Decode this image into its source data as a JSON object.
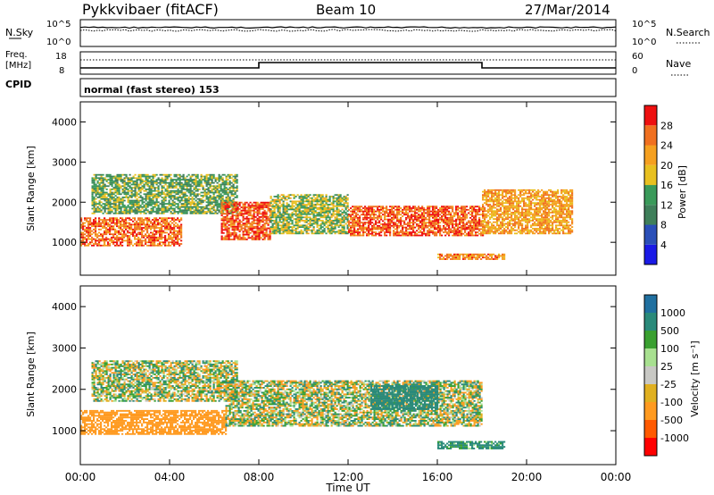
{
  "header": {
    "station": "Pykkvibaer (fitACF)",
    "beam": "Beam 10",
    "date": "27/Mar/2014"
  },
  "top_panels": {
    "nsky_label": "N.Sky",
    "nsearch_label": "N.Search",
    "nsky_ticks": [
      "10^5",
      "10^0"
    ],
    "nsearch_ticks": [
      "10^5",
      "10^0"
    ],
    "freq_label_1": "Freq.",
    "freq_label_2": "[MHz]",
    "freq_ticks": [
      "18",
      "8"
    ],
    "nave_label": "Nave",
    "nave_ticks": [
      "60",
      "0"
    ],
    "cpid_label": "CPID",
    "cpid_text": "normal (fast stereo) 153"
  },
  "colors": {
    "power_scale": [
      "#1a1ae6",
      "#2a4fb8",
      "#3f7f5a",
      "#3a9a5a",
      "#e8c020",
      "#f5a020",
      "#f07020",
      "#ee1010"
    ],
    "velocity_scale": [
      "#ff0000",
      "#ff5a00",
      "#ff9a20",
      "#e0b020",
      "#c8c8c4",
      "#a8e090",
      "#3aa030",
      "#2a8a7a",
      "#2070a0",
      "#2030c0"
    ]
  },
  "chart_data": [
    {
      "type": "heatmap",
      "panel": "power",
      "ylabel": "Slant Range [km]",
      "ylim": [
        180,
        4500
      ],
      "yticks": [
        "1000",
        "2000",
        "3000",
        "4000"
      ],
      "xlim": [
        0,
        24
      ],
      "colorbar": {
        "label": "Power [dB]",
        "ticks": [
          "4",
          "8",
          "12",
          "16",
          "20",
          "24",
          "28"
        ],
        "range": [
          0,
          32
        ]
      },
      "regions": [
        {
          "t": [
            0,
            4.5
          ],
          "r": [
            900,
            1600
          ],
          "level": 26
        },
        {
          "t": [
            0.5,
            7
          ],
          "r": [
            1700,
            2700
          ],
          "level": 14
        },
        {
          "t": [
            6.3,
            8.5
          ],
          "r": [
            1050,
            2000
          ],
          "level": 27
        },
        {
          "t": [
            8.5,
            12
          ],
          "r": [
            1200,
            2200
          ],
          "level": 16
        },
        {
          "t": [
            12,
            18
          ],
          "r": [
            1150,
            1900
          ],
          "level": 27
        },
        {
          "t": [
            18,
            22
          ],
          "r": [
            1200,
            2300
          ],
          "level": 22
        },
        {
          "t": [
            16,
            19
          ],
          "r": [
            560,
            720
          ],
          "level": 24
        }
      ]
    },
    {
      "type": "heatmap",
      "panel": "velocity",
      "ylabel": "Slant Range [km]",
      "ylim": [
        180,
        4500
      ],
      "yticks": [
        "1000",
        "2000",
        "3000",
        "4000"
      ],
      "xlim": [
        0,
        24
      ],
      "colorbar": {
        "label": "Velocity [m s⁻¹]",
        "ticks": [
          "1000",
          "500",
          "100",
          "25",
          "-25",
          "-100",
          "-500",
          "-1000"
        ]
      },
      "regions": [
        {
          "t": [
            0,
            6.5
          ],
          "r": [
            900,
            1500
          ],
          "v": -300
        },
        {
          "t": [
            0.5,
            7
          ],
          "r": [
            1700,
            2700
          ],
          "v": 0
        },
        {
          "t": [
            6.5,
            18
          ],
          "r": [
            1100,
            2200
          ],
          "v": 0
        },
        {
          "t": [
            13,
            16
          ],
          "r": [
            1500,
            2100
          ],
          "v": 300
        },
        {
          "t": [
            16,
            19
          ],
          "r": [
            550,
            720
          ],
          "v": 200
        }
      ]
    }
  ],
  "xaxis": {
    "label": "Time UT",
    "ticks": [
      "00:00",
      "04:00",
      "08:00",
      "12:00",
      "16:00",
      "20:00",
      "00:00"
    ]
  }
}
